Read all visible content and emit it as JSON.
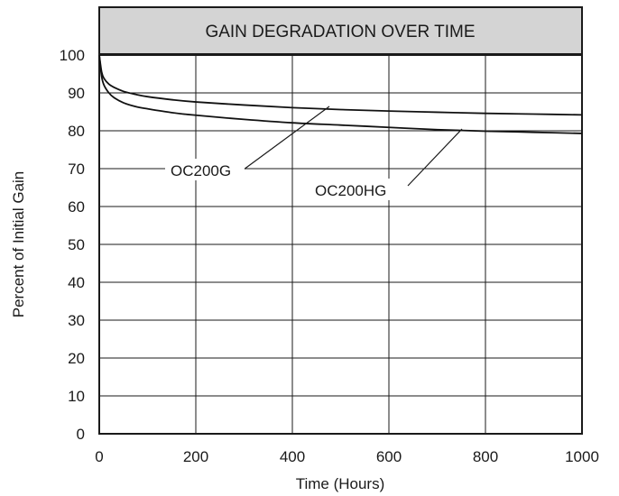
{
  "chart_data": {
    "type": "line",
    "title": "GAIN DEGRADATION OVER TIME",
    "xlabel": "Time (Hours)",
    "ylabel": "Percent of Initial Gain",
    "xlim": [
      0,
      1000
    ],
    "ylim": [
      0,
      100
    ],
    "xticks": [
      0,
      200,
      400,
      600,
      800,
      1000
    ],
    "yticks": [
      0,
      10,
      20,
      30,
      40,
      50,
      60,
      70,
      80,
      90,
      100
    ],
    "x_tick_labels": [
      "0",
      "200",
      "400",
      "600",
      "800",
      "1000"
    ],
    "y_tick_labels": [
      "0",
      "10",
      "20",
      "30",
      "40",
      "50",
      "60",
      "70",
      "80",
      "90",
      "100"
    ],
    "grid": true,
    "series": [
      {
        "name": "OC200G",
        "x": [
          0,
          5,
          10,
          20,
          30,
          50,
          75,
          100,
          150,
          200,
          300,
          400,
          500,
          600,
          700,
          800,
          900,
          1000
        ],
        "y": [
          100,
          95.5,
          93.8,
          92.3,
          91.5,
          90.4,
          89.6,
          89.0,
          88.2,
          87.6,
          86.8,
          86.1,
          85.6,
          85.2,
          84.9,
          84.6,
          84.4,
          84.2
        ]
      },
      {
        "name": "OC200HG",
        "x": [
          0,
          5,
          10,
          20,
          30,
          50,
          75,
          100,
          150,
          200,
          300,
          400,
          500,
          600,
          700,
          800,
          900,
          1000
        ],
        "y": [
          100,
          94.3,
          92.0,
          90.0,
          88.8,
          87.4,
          86.4,
          85.8,
          84.8,
          84.1,
          83.0,
          82.1,
          81.5,
          80.9,
          80.3,
          79.9,
          79.6,
          79.3
        ]
      }
    ],
    "annotations": [
      {
        "text": "OC200G",
        "series": "OC200G"
      },
      {
        "text": "OC200HG",
        "series": "OC200HG"
      }
    ]
  }
}
